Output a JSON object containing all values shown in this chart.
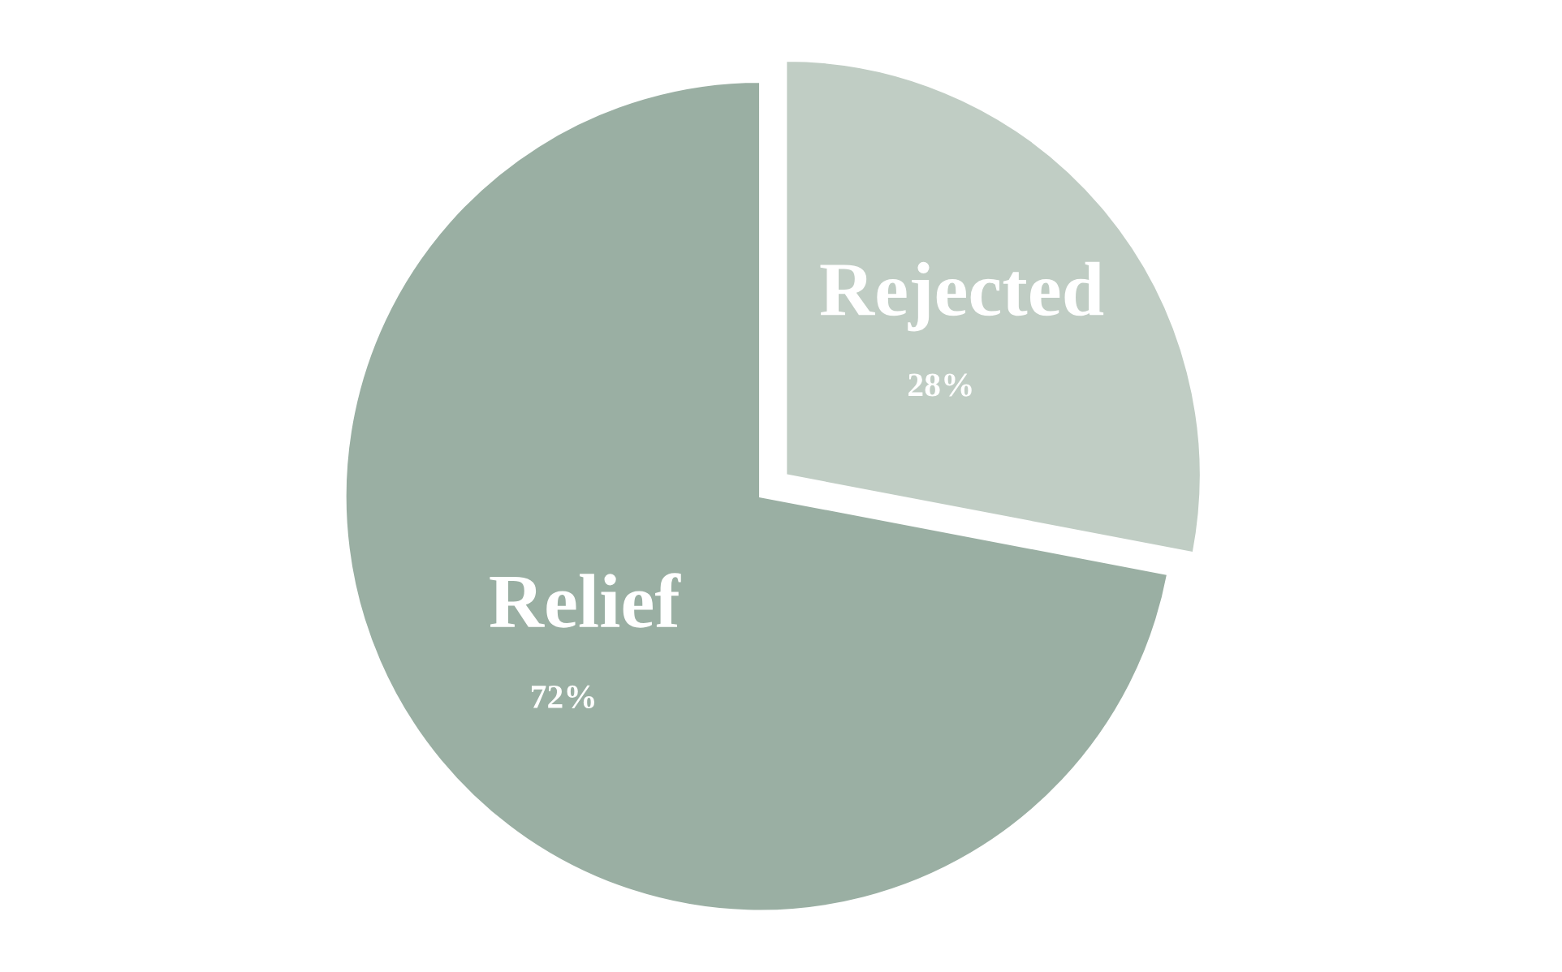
{
  "chart_data": {
    "type": "pie",
    "categories": [
      "Relief",
      "Rejected"
    ],
    "values": [
      72,
      28
    ],
    "colors": [
      "#9aafa3",
      "#c0cdc4"
    ],
    "value_labels": [
      "72%",
      "28%"
    ]
  }
}
